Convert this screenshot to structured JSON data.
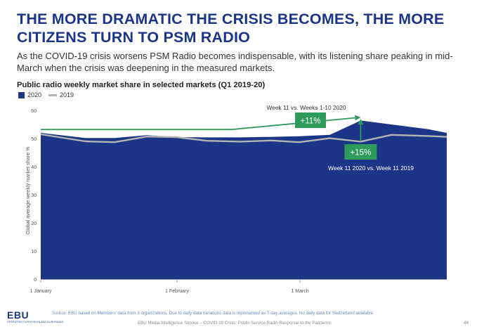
{
  "slide": {
    "title": "THE MORE DRAMATIC THE CRISIS BECOMES, THE MORE CITIZENS TURN TO PSM RADIO",
    "subtitle": "As the COVID-19 crisis worsens PSM Radio becomes indispensable, with its listening share peaking in mid-March when the crisis was deepening in the measured markets.",
    "footer": {
      "logo": "EBU",
      "logo_sub": "OPERATING EUROVISION AND EURORADIO",
      "source": "Source: EBU based on Members' data from 3 organizations. Due to daily data variations data is represented as 7-day averages. No daily data for Switzerland available.",
      "center": "EBU Media Intelligence Service – COVID-19 Crisis: Public Service Radio Response to the Pandemic",
      "page": "46"
    }
  },
  "colors": {
    "series_2020": "#1c3687",
    "series_2019": "#b3b3b3",
    "annotation": "#2e9a5b",
    "title": "#1c3687"
  },
  "chart_data": {
    "type": "area",
    "title": "Public radio weekly market share in selected markets (Q1 2019-20)",
    "ylabel": "Global average weekly market share %",
    "xlabel": "",
    "ylim": [
      0,
      60
    ],
    "yticks": [
      0,
      10,
      20,
      30,
      40,
      50,
      60
    ],
    "x_tick_labels": [
      {
        "label": "1 January",
        "week": 0
      },
      {
        "label": "1 February",
        "week": 4.43
      },
      {
        "label": "1 March",
        "week": 8.43
      }
    ],
    "x_range_weeks": [
      0,
      13.2
    ],
    "series": [
      {
        "name": "2020",
        "style": "area",
        "x_weeks": [
          0,
          1.45,
          2.4,
          3.45,
          4.4,
          5.4,
          6.5,
          7.5,
          8.4,
          9.4,
          10.4,
          11.4,
          12.6,
          13.2
        ],
        "values": [
          52.0,
          50.2,
          50.2,
          51.2,
          50.5,
          50.4,
          50.4,
          50.6,
          50.8,
          51.3,
          56.4,
          55.0,
          53.3,
          52.0
        ]
      },
      {
        "name": "2019",
        "style": "line",
        "x_weeks": [
          0,
          1.45,
          2.4,
          3.45,
          4.4,
          5.4,
          6.5,
          7.5,
          8.4,
          9.4,
          10.4,
          11.4,
          12.6,
          13.2
        ],
        "values": [
          51.5,
          49.0,
          48.7,
          50.7,
          50.5,
          49.2,
          48.9,
          49.3,
          48.7,
          50.1,
          48.9,
          51.3,
          50.9,
          50.6
        ]
      }
    ],
    "annotations": [
      {
        "label": "Week 11 vs. Weeks 1-10 2020",
        "badge": "+11%",
        "baseline": 53.2,
        "week_start": 0,
        "week_end": 10.4,
        "peak": 57.5
      },
      {
        "label": "Week 11 2020 vs. Week 11 2019",
        "badge": "+15%",
        "week": 10.4,
        "from": 49.0,
        "to": 57.5
      }
    ],
    "legend": {
      "position": "top-left",
      "entries": [
        "2020",
        "2019"
      ]
    }
  }
}
